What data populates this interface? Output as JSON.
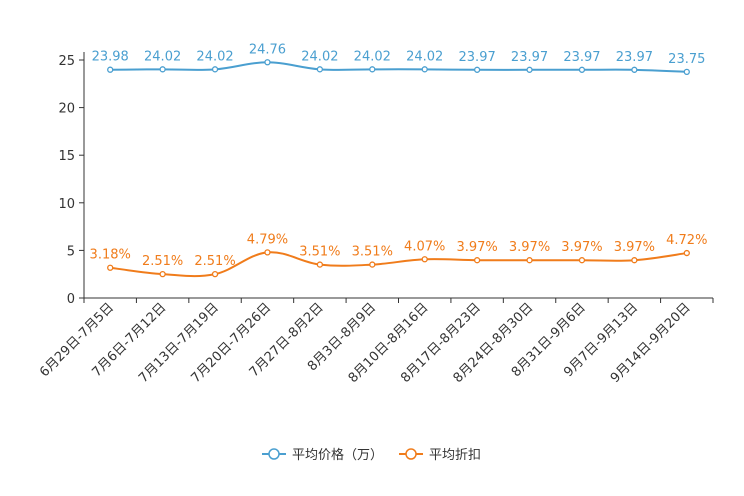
{
  "chart_data": {
    "type": "line",
    "title": "",
    "xlabel": "",
    "ylabel": "",
    "ylim": [
      0,
      25
    ],
    "yticks": [
      0,
      5,
      10,
      15,
      20,
      25
    ],
    "grid": false,
    "legend_position": "bottom-center",
    "categories": [
      "6月29日-7月5日",
      "7月6日-7月12日",
      "7月13日-7月19日",
      "7月20日-7月26日",
      "7月27日-8月2日",
      "8月3日-8月9日",
      "8月10日-8月16日",
      "8月17日-8月23日",
      "8月24日-8月30日",
      "8月31日-9月6日",
      "9月7日-9月13日",
      "9月14日-9月20日"
    ],
    "series": [
      {
        "name": "平均价格（万）",
        "color": "#4a9fd0",
        "values": [
          23.98,
          24.02,
          24.02,
          24.76,
          24.02,
          24.02,
          24.02,
          23.97,
          23.97,
          23.97,
          23.97,
          23.75
        ],
        "labels": [
          "23.98",
          "24.02",
          "24.02",
          "24.76",
          "24.02",
          "24.02",
          "24.02",
          "23.97",
          "23.97",
          "23.97",
          "23.97",
          "23.75"
        ]
      },
      {
        "name": "平均折扣",
        "color": "#f07c1b",
        "values": [
          3.18,
          2.51,
          2.51,
          4.79,
          3.51,
          3.51,
          4.07,
          3.97,
          3.97,
          3.97,
          3.97,
          4.72
        ],
        "labels": [
          "3.18%",
          "2.51%",
          "2.51%",
          "4.79%",
          "3.51%",
          "3.51%",
          "4.07%",
          "3.97%",
          "3.97%",
          "3.97%",
          "3.97%",
          "4.72%"
        ]
      }
    ]
  }
}
